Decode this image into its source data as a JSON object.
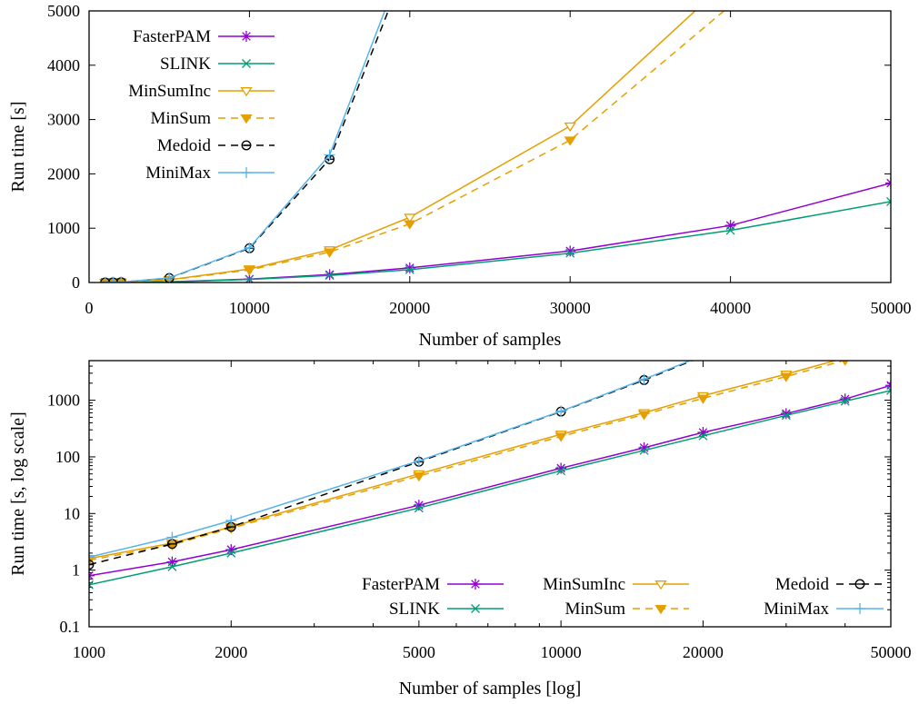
{
  "colors": {
    "FasterPAM": "#9400d3",
    "SLINK": "#009e73",
    "MinSumInc": "#e69f00",
    "MinSum": "#e69f00",
    "Medoid": "#000000",
    "MiniMax": "#56b4e9"
  },
  "chart_data": [
    {
      "type": "line",
      "title": "",
      "xlabel": "Number of samples",
      "ylabel": "Run time [s]",
      "xlim": [
        0,
        50000
      ],
      "ylim": [
        0,
        5000
      ],
      "xticks": [
        0,
        10000,
        20000,
        30000,
        40000,
        50000
      ],
      "yticks": [
        0,
        1000,
        2000,
        3000,
        4000,
        5000
      ],
      "xscale": "linear",
      "yscale": "linear",
      "legend": "top-left",
      "series": [
        {
          "name": "FasterPAM",
          "marker": "asterisk",
          "dash": false,
          "x": [
            1000,
            1500,
            2000,
            5000,
            10000,
            15000,
            20000,
            30000,
            40000,
            50000
          ],
          "y": [
            0.8,
            1.4,
            2.3,
            14,
            63,
            145,
            270,
            580,
            1050,
            1830
          ]
        },
        {
          "name": "SLINK",
          "marker": "cross",
          "dash": false,
          "x": [
            1000,
            1500,
            2000,
            5000,
            10000,
            15000,
            20000,
            30000,
            40000,
            50000
          ],
          "y": [
            0.55,
            1.15,
            2.0,
            12.5,
            57,
            130,
            235,
            540,
            960,
            1490
          ]
        },
        {
          "name": "MinSumInc",
          "marker": "triangle-down-open",
          "dash": false,
          "x": [
            1000,
            1500,
            2000,
            5000,
            10000,
            15000,
            20000,
            30000,
            40000
          ],
          "y": [
            1.6,
            3.0,
            5.8,
            50,
            250,
            600,
            1200,
            2880,
            5600
          ]
        },
        {
          "name": "MinSum",
          "marker": "triangle-down-filled",
          "dash": true,
          "x": [
            1000,
            1500,
            2000,
            5000,
            10000,
            15000,
            20000,
            30000,
            40000
          ],
          "y": [
            1.5,
            2.8,
            5.5,
            46,
            230,
            560,
            1080,
            2620,
            5100
          ]
        },
        {
          "name": "Medoid",
          "marker": "circle-open",
          "dash": true,
          "x": [
            1000,
            1500,
            2000,
            5000,
            10000,
            15000,
            20000
          ],
          "y": [
            1.25,
            2.9,
            5.8,
            82,
            630,
            2270,
            6000
          ]
        },
        {
          "name": "MiniMax",
          "marker": "plus",
          "dash": false,
          "x": [
            1000,
            1500,
            2000,
            5000,
            10000,
            15000,
            20000
          ],
          "y": [
            1.7,
            3.8,
            7.5,
            85,
            640,
            2350,
            6200
          ]
        }
      ]
    },
    {
      "type": "line",
      "title": "",
      "xlabel": "Number of samples [log]",
      "ylabel": "Run time [s, log scale]",
      "xlim": [
        1000,
        50000
      ],
      "ylim": [
        0.1,
        5000
      ],
      "xticks": [
        1000,
        2000,
        5000,
        10000,
        20000,
        50000
      ],
      "yticks": [
        0.1,
        1,
        10,
        100,
        1000
      ],
      "xscale": "log",
      "yscale": "log",
      "legend": "bottom-right",
      "series_ref": "same as first chart"
    }
  ]
}
